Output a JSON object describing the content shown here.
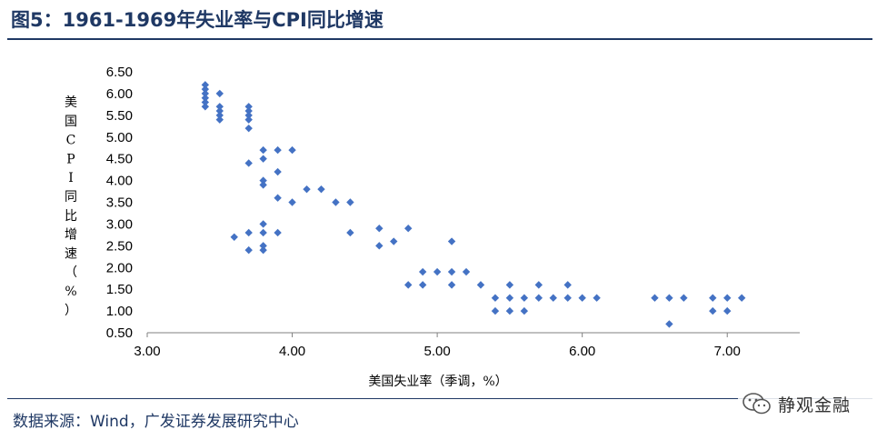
{
  "header": {
    "title": "图5：1961-1969年失业率与CPI同比增速"
  },
  "footer": {
    "source": "数据来源：Wind，广发证券发展研究中心"
  },
  "watermark": {
    "text": "静观金融",
    "icon": "wechat-icon"
  },
  "chart_data": {
    "type": "scatter",
    "title": "",
    "xlabel": "美国失业率（季调，%）",
    "ylabel": "美国CPI同比增速（%）",
    "ylabel_chars": [
      "美",
      "国",
      "C",
      "P",
      "I",
      "同",
      "比",
      "增",
      "速",
      "（",
      "%",
      "）"
    ],
    "xlim": [
      3.0,
      7.5
    ],
    "ylim": [
      0.5,
      6.5
    ],
    "xticks": [
      "3.00",
      "4.00",
      "5.00",
      "6.00",
      "7.00"
    ],
    "xtick_values": [
      3,
      4,
      5,
      6,
      7
    ],
    "yticks": [
      "0.50",
      "1.00",
      "1.50",
      "2.00",
      "2.50",
      "3.00",
      "3.50",
      "4.00",
      "4.50",
      "5.00",
      "5.50",
      "6.00",
      "6.50"
    ],
    "ytick_values": [
      0.5,
      1,
      1.5,
      2,
      2.5,
      3,
      3.5,
      4,
      4.5,
      5,
      5.5,
      6,
      6.5
    ],
    "grid": false,
    "marker": "diamond",
    "color": "#4472c4",
    "points": [
      [
        3.4,
        6.2
      ],
      [
        3.4,
        6.1
      ],
      [
        3.4,
        6.0
      ],
      [
        3.4,
        5.9
      ],
      [
        3.4,
        5.8
      ],
      [
        3.4,
        5.7
      ],
      [
        3.5,
        6.0
      ],
      [
        3.5,
        5.7
      ],
      [
        3.5,
        5.6
      ],
      [
        3.5,
        5.5
      ],
      [
        3.5,
        5.4
      ],
      [
        3.7,
        5.7
      ],
      [
        3.7,
        5.6
      ],
      [
        3.7,
        5.5
      ],
      [
        3.7,
        5.4
      ],
      [
        3.7,
        5.2
      ],
      [
        3.7,
        4.4
      ],
      [
        3.7,
        2.8
      ],
      [
        3.7,
        2.4
      ],
      [
        3.6,
        2.7
      ],
      [
        3.8,
        4.7
      ],
      [
        3.8,
        4.5
      ],
      [
        3.8,
        4.0
      ],
      [
        3.8,
        3.9
      ],
      [
        3.8,
        3.0
      ],
      [
        3.8,
        2.8
      ],
      [
        3.8,
        2.5
      ],
      [
        3.8,
        2.4
      ],
      [
        3.9,
        4.7
      ],
      [
        3.9,
        4.2
      ],
      [
        3.9,
        3.6
      ],
      [
        3.9,
        2.8
      ],
      [
        4.0,
        4.7
      ],
      [
        4.0,
        3.5
      ],
      [
        4.1,
        3.8
      ],
      [
        4.2,
        3.8
      ],
      [
        4.3,
        3.5
      ],
      [
        4.4,
        3.5
      ],
      [
        4.4,
        2.8
      ],
      [
        4.6,
        2.9
      ],
      [
        4.6,
        2.5
      ],
      [
        4.7,
        2.6
      ],
      [
        4.8,
        2.9
      ],
      [
        4.8,
        1.6
      ],
      [
        4.9,
        1.9
      ],
      [
        4.9,
        1.6
      ],
      [
        5.0,
        1.9
      ],
      [
        5.1,
        2.6
      ],
      [
        5.1,
        1.9
      ],
      [
        5.1,
        1.6
      ],
      [
        5.2,
        1.9
      ],
      [
        5.3,
        1.6
      ],
      [
        5.4,
        1.3
      ],
      [
        5.4,
        1.0
      ],
      [
        5.5,
        1.6
      ],
      [
        5.5,
        1.3
      ],
      [
        5.5,
        1.0
      ],
      [
        5.6,
        1.3
      ],
      [
        5.6,
        1.0
      ],
      [
        5.7,
        1.6
      ],
      [
        5.7,
        1.3
      ],
      [
        5.8,
        1.3
      ],
      [
        5.9,
        1.6
      ],
      [
        5.9,
        1.3
      ],
      [
        6.0,
        1.3
      ],
      [
        6.1,
        1.3
      ],
      [
        6.5,
        1.3
      ],
      [
        6.6,
        1.3
      ],
      [
        6.6,
        0.7
      ],
      [
        6.7,
        1.3
      ],
      [
        6.9,
        1.3
      ],
      [
        6.9,
        1.0
      ],
      [
        7.0,
        1.3
      ],
      [
        7.0,
        1.0
      ],
      [
        7.1,
        1.3
      ]
    ]
  }
}
